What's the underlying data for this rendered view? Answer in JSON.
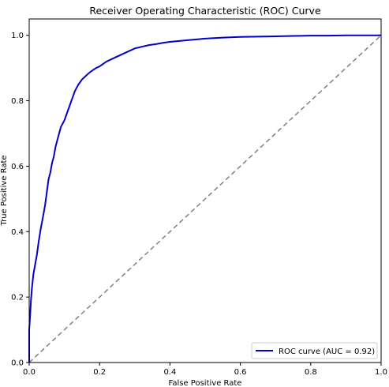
{
  "chart_data": {
    "type": "line",
    "title": "Receiver Operating Characteristic (ROC) Curve",
    "xlabel": "False Positive Rate",
    "ylabel": "True Positive Rate",
    "xlim": [
      0.0,
      1.0
    ],
    "ylim": [
      0.0,
      1.05
    ],
    "grid": false,
    "legend_position": "lower-right",
    "x_ticks": [
      "0.0",
      "0.2",
      "0.4",
      "0.6",
      "0.8",
      "1.0"
    ],
    "y_ticks": [
      "0.0",
      "0.2",
      "0.4",
      "0.6",
      "0.8",
      "1.0"
    ],
    "series": [
      {
        "name": "ROC curve (AUC = 0.92)",
        "color": "#0000cc",
        "style": "solid",
        "x": [
          0.0,
          0.0,
          0.003,
          0.005,
          0.008,
          0.012,
          0.017,
          0.022,
          0.027,
          0.033,
          0.04,
          0.045,
          0.05,
          0.055,
          0.06,
          0.065,
          0.07,
          0.075,
          0.08,
          0.085,
          0.09,
          0.1,
          0.11,
          0.12,
          0.13,
          0.14,
          0.15,
          0.16,
          0.17,
          0.18,
          0.19,
          0.2,
          0.22,
          0.24,
          0.26,
          0.28,
          0.3,
          0.32,
          0.34,
          0.36,
          0.38,
          0.4,
          0.45,
          0.5,
          0.55,
          0.6,
          0.65,
          0.7,
          0.75,
          0.8,
          0.85,
          0.9,
          0.95,
          1.0
        ],
        "y": [
          0.0,
          0.1,
          0.15,
          0.19,
          0.23,
          0.27,
          0.3,
          0.33,
          0.37,
          0.41,
          0.45,
          0.48,
          0.52,
          0.56,
          0.58,
          0.61,
          0.63,
          0.66,
          0.68,
          0.7,
          0.72,
          0.74,
          0.77,
          0.8,
          0.83,
          0.85,
          0.865,
          0.875,
          0.885,
          0.893,
          0.9,
          0.905,
          0.92,
          0.93,
          0.94,
          0.95,
          0.96,
          0.965,
          0.97,
          0.973,
          0.977,
          0.98,
          0.985,
          0.99,
          0.993,
          0.995,
          0.996,
          0.997,
          0.998,
          0.999,
          0.999,
          1.0,
          1.0,
          1.0
        ]
      },
      {
        "name": "",
        "color": "#808080",
        "style": "dashed",
        "x": [
          0.0,
          1.0
        ],
        "y": [
          0.0,
          1.0
        ]
      }
    ]
  }
}
